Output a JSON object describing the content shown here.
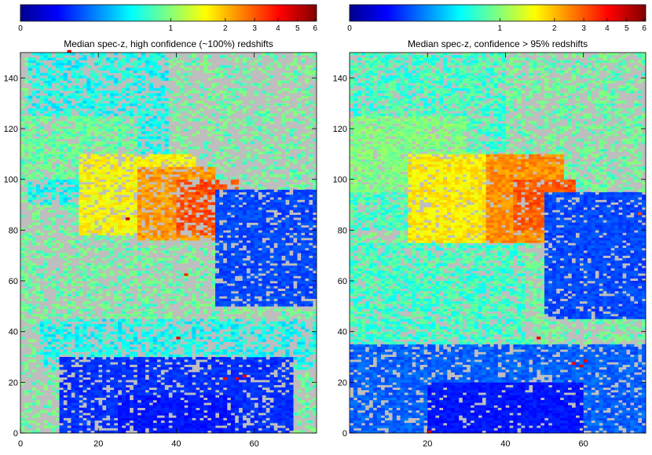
{
  "chart_data": [
    {
      "type": "heatmap",
      "title": "Median spec-z, high confidence (~100%) redshifts",
      "xlabel": "",
      "ylabel": "",
      "xlim": [
        0,
        76
      ],
      "ylim": [
        0,
        150
      ],
      "xticks": [
        0,
        20,
        40,
        60
      ],
      "yticks": [
        0,
        20,
        40,
        60,
        80,
        100,
        120,
        140
      ],
      "colorbar": {
        "range": [
          0,
          6
        ],
        "ticks": [
          "0",
          "1",
          "2",
          "3",
          "4",
          "5",
          "6"
        ],
        "placement": "top"
      },
      "missing_color": "#bebebe",
      "regions": [
        {
          "x": [
            0,
            76
          ],
          "y": [
            0,
            150
          ],
          "z": 1.0,
          "fill": 0.35
        },
        {
          "x": [
            2,
            38
          ],
          "y": [
            90,
            150
          ],
          "z": 0.8,
          "fill": 0.6
        },
        {
          "x": [
            0,
            30
          ],
          "y": [
            100,
            125
          ],
          "z": 1.0,
          "fill": 0.7
        },
        {
          "x": [
            15,
            45
          ],
          "y": [
            78,
            110
          ],
          "z": 1.8,
          "fill": 0.75
        },
        {
          "x": [
            30,
            50
          ],
          "y": [
            76,
            105
          ],
          "z": 2.7,
          "fill": 0.75
        },
        {
          "x": [
            40,
            56
          ],
          "y": [
            78,
            100
          ],
          "z": 3.6,
          "fill": 0.6
        },
        {
          "x": [
            50,
            76
          ],
          "y": [
            50,
            96
          ],
          "z": 0.4,
          "fill": 0.8
        },
        {
          "x": [
            0,
            40
          ],
          "y": [
            40,
            75
          ],
          "z": 1.0,
          "fill": 0.45
        },
        {
          "x": [
            5,
            76
          ],
          "y": [
            25,
            45
          ],
          "z": 0.8,
          "fill": 0.55
        },
        {
          "x": [
            10,
            70
          ],
          "y": [
            0,
            30
          ],
          "z": 0.35,
          "fill": 0.75
        },
        {
          "x": [
            25,
            55
          ],
          "y": [
            0,
            15
          ],
          "z": 0.3,
          "fill": 0.85
        }
      ],
      "hotspots": [
        {
          "x": 57,
          "y": 22,
          "z": 5.0
        },
        {
          "x": 55,
          "y": 21,
          "z": 5.2
        },
        {
          "x": 52,
          "y": 21,
          "z": 5.0
        },
        {
          "x": 40,
          "y": 37,
          "z": 5.1
        },
        {
          "x": 27,
          "y": 84,
          "z": 5.8
        },
        {
          "x": 12,
          "y": 150,
          "z": 5.2
        },
        {
          "x": 42,
          "y": 62,
          "z": 4.0
        },
        {
          "x": 45,
          "y": 94,
          "z": 4.2
        },
        {
          "x": 49,
          "y": 86,
          "z": 3.9
        }
      ]
    },
    {
      "type": "heatmap",
      "title": "Median spec-z, confidence > 95% redshifts",
      "xlabel": "",
      "ylabel": "",
      "xlim": [
        0,
        76
      ],
      "ylim": [
        0,
        150
      ],
      "xticks": [
        20,
        40,
        60
      ],
      "yticks": [
        0,
        20,
        40,
        60,
        80,
        100,
        120,
        140
      ],
      "colorbar": {
        "range": [
          0,
          6
        ],
        "ticks": [
          "0",
          "1",
          "2",
          "3",
          "4",
          "5",
          "6"
        ],
        "placement": "top"
      },
      "missing_color": "#bebebe",
      "regions": [
        {
          "x": [
            0,
            76
          ],
          "y": [
            0,
            150
          ],
          "z": 1.0,
          "fill": 0.45
        },
        {
          "x": [
            0,
            40
          ],
          "y": [
            80,
            150
          ],
          "z": 0.9,
          "fill": 0.7
        },
        {
          "x": [
            0,
            30
          ],
          "y": [
            95,
            125
          ],
          "z": 1.1,
          "fill": 0.8
        },
        {
          "x": [
            15,
            45
          ],
          "y": [
            70,
            110
          ],
          "z": 1.9,
          "fill": 0.85
        },
        {
          "x": [
            35,
            55
          ],
          "y": [
            75,
            110
          ],
          "z": 2.8,
          "fill": 0.9
        },
        {
          "x": [
            42,
            58
          ],
          "y": [
            80,
            100
          ],
          "z": 3.4,
          "fill": 0.8
        },
        {
          "x": [
            50,
            76
          ],
          "y": [
            45,
            95
          ],
          "z": 0.4,
          "fill": 0.85
        },
        {
          "x": [
            0,
            45
          ],
          "y": [
            30,
            75
          ],
          "z": 0.9,
          "fill": 0.7
        },
        {
          "x": [
            0,
            76
          ],
          "y": [
            0,
            35
          ],
          "z": 0.45,
          "fill": 0.8
        },
        {
          "x": [
            20,
            60
          ],
          "y": [
            0,
            20
          ],
          "z": 0.3,
          "fill": 0.9
        }
      ],
      "hotspots": [
        {
          "x": 57,
          "y": 27,
          "z": 5.0
        },
        {
          "x": 59,
          "y": 26,
          "z": 5.2
        },
        {
          "x": 60,
          "y": 28,
          "z": 5.0
        },
        {
          "x": 48,
          "y": 37,
          "z": 5.0
        },
        {
          "x": 20,
          "y": 0,
          "z": 5.1
        },
        {
          "x": 74,
          "y": 86,
          "z": 3.6
        }
      ]
    }
  ]
}
